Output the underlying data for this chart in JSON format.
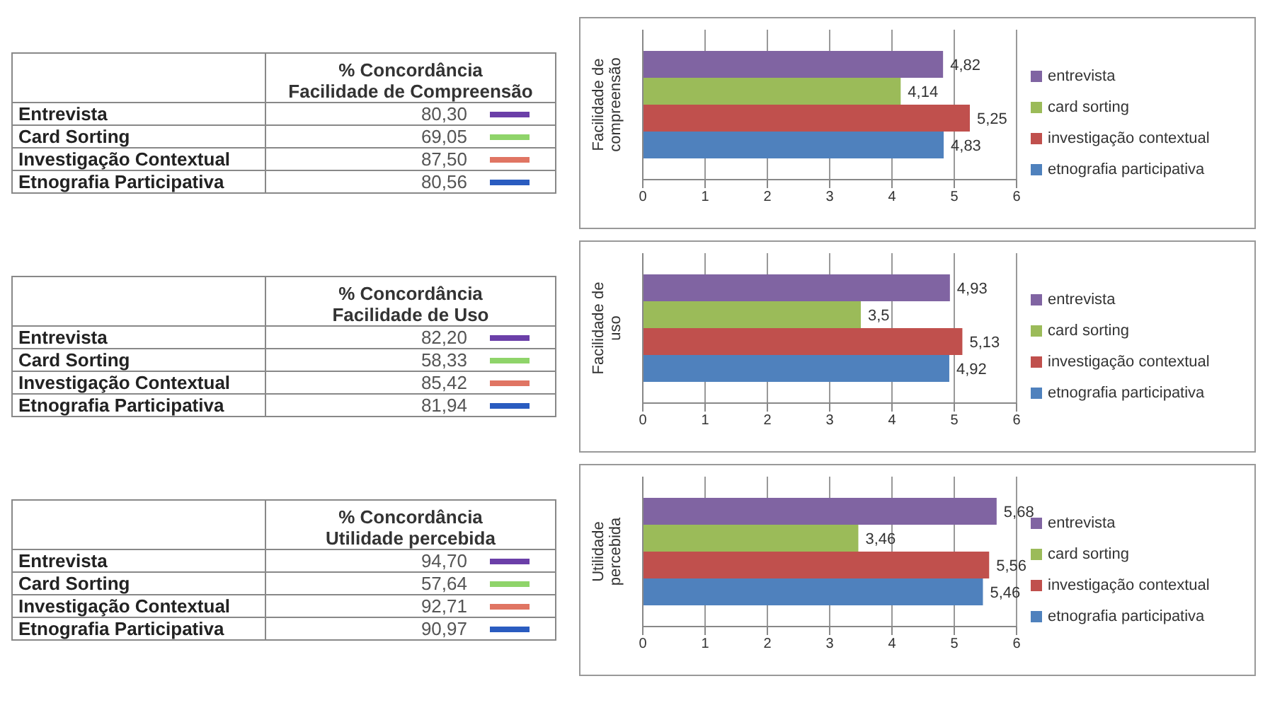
{
  "chart_data": [
    {
      "type": "other",
      "title": "% Concordância",
      "subtitle": "Facilidade de Compreensão",
      "categories": [
        "Entrevista",
        "Card Sorting",
        "Investigação Contextual",
        "Etnografia Participativa"
      ],
      "values": [
        80.3,
        69.05,
        87.5,
        80.56
      ],
      "value_labels": [
        "80,30",
        "69,05",
        "87,50",
        "80,56"
      ],
      "colors": [
        "#6b3fa8",
        "#8fd46a",
        "#e07563",
        "#2a5cc0"
      ]
    },
    {
      "type": "bar",
      "orientation": "horizontal",
      "categories": [
        null
      ],
      "ylabel": "Facilidade de compreensão",
      "xlim": [
        0,
        6
      ],
      "xticks": [
        0,
        1,
        2,
        3,
        4,
        5,
        6
      ],
      "grid": "x",
      "legend": "right",
      "series": [
        {
          "name": "entrevista",
          "color": "#8064a2",
          "values": [
            4.82
          ],
          "value_labels": [
            "4,82"
          ]
        },
        {
          "name": "card sorting",
          "color": "#9bbb59",
          "values": [
            4.14
          ],
          "value_labels": [
            "4,14"
          ]
        },
        {
          "name": "investigação contextual",
          "color": "#c0504d",
          "values": [
            5.25
          ],
          "value_labels": [
            "5,25"
          ]
        },
        {
          "name": "etnografia participativa",
          "color": "#4f81bd",
          "values": [
            4.83
          ],
          "value_labels": [
            "4,83"
          ]
        }
      ]
    },
    {
      "type": "other",
      "title": "% Concordância",
      "subtitle": "Facilidade de Uso",
      "categories": [
        "Entrevista",
        "Card Sorting",
        "Investigação Contextual",
        "Etnografia Participativa"
      ],
      "values": [
        82.2,
        58.33,
        85.42,
        81.94
      ],
      "value_labels": [
        "82,20",
        "58,33",
        "85,42",
        "81,94"
      ],
      "colors": [
        "#6b3fa8",
        "#8fd46a",
        "#e07563",
        "#2a5cc0"
      ]
    },
    {
      "type": "bar",
      "orientation": "horizontal",
      "categories": [
        null
      ],
      "ylabel": "Facilidade de uso",
      "xlim": [
        0,
        6
      ],
      "xticks": [
        0,
        1,
        2,
        3,
        4,
        5,
        6
      ],
      "grid": "x",
      "legend": "right",
      "series": [
        {
          "name": "entrevista",
          "color": "#8064a2",
          "values": [
            4.93
          ],
          "value_labels": [
            "4,93"
          ]
        },
        {
          "name": "card sorting",
          "color": "#9bbb59",
          "values": [
            3.5
          ],
          "value_labels": [
            "3,5"
          ]
        },
        {
          "name": "investigação contextual",
          "color": "#c0504d",
          "values": [
            5.13
          ],
          "value_labels": [
            "5,13"
          ]
        },
        {
          "name": "etnografia participativa",
          "color": "#4f81bd",
          "values": [
            4.92
          ],
          "value_labels": [
            "4,92"
          ]
        }
      ]
    },
    {
      "type": "other",
      "title": "% Concordância",
      "subtitle": "Utilidade percebida",
      "categories": [
        "Entrevista",
        "Card Sorting",
        "Investigação Contextual",
        "Etnografia Participativa"
      ],
      "values": [
        94.7,
        57.64,
        92.71,
        90.97
      ],
      "value_labels": [
        "94,70",
        "57,64",
        "92,71",
        "90,97"
      ],
      "colors": [
        "#6b3fa8",
        "#8fd46a",
        "#e07563",
        "#2a5cc0"
      ]
    },
    {
      "type": "bar",
      "orientation": "horizontal",
      "categories": [
        null
      ],
      "ylabel": "Utilidade percebida",
      "xlim": [
        0,
        6
      ],
      "xticks": [
        0,
        1,
        2,
        3,
        4,
        5,
        6
      ],
      "grid": "x",
      "legend": "right",
      "series": [
        {
          "name": "entrevista",
          "color": "#8064a2",
          "values": [
            5.68
          ],
          "value_labels": [
            "5,68"
          ]
        },
        {
          "name": "card sorting",
          "color": "#9bbb59",
          "values": [
            3.46
          ],
          "value_labels": [
            "3,46"
          ]
        },
        {
          "name": "investigação contextual",
          "color": "#c0504d",
          "values": [
            5.56
          ],
          "value_labels": [
            "5,56"
          ]
        },
        {
          "name": "etnografia participativa",
          "color": "#4f81bd",
          "values": [
            5.46
          ],
          "value_labels": [
            "5,46"
          ]
        }
      ]
    }
  ]
}
